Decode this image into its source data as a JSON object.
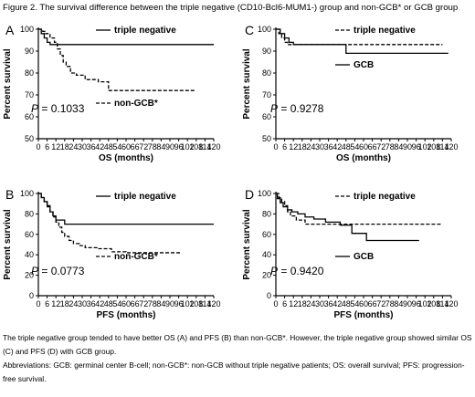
{
  "figure": {
    "title": "Figure 2. The survival difference between the triple negative (CD10-Bcl6-MUM1-) group and non-GCB* or GCB group",
    "caption": "The triple negative group tended to have better OS (A) and PFS (B) than non-GCB*. However, the triple negative group showed similar OS (C) and PFS (D) with GCB group.",
    "abbreviations": "Abbreviations: GCB: germinal center B-cell; non-GCB*: non-GCB without triple negative patients; OS: overall survival; PFS: progression-free survival."
  },
  "colors": {
    "line": "#000000",
    "background": "#ffffff"
  },
  "chart_data": [
    {
      "panel": "A",
      "type": "line",
      "ylabel": "Percent survival",
      "xlabel": "OS (months)",
      "xlim": [
        0,
        120
      ],
      "ylim": [
        50,
        100
      ],
      "x_ticks": [
        "0",
        "6",
        "12",
        "18",
        "24",
        "30",
        "36",
        "42",
        "48",
        "54",
        "60",
        "66",
        "72",
        "78",
        "84",
        "90",
        "96",
        "102",
        "108",
        "114",
        "120"
      ],
      "y_ticks": [
        "50",
        "60",
        "70",
        "80",
        "90",
        "100"
      ],
      "p_value": "0.1033",
      "legend_position": "top-right",
      "series": [
        {
          "name": "triple negative",
          "style": "solid",
          "points": [
            [
              0,
              100
            ],
            [
              2,
              100
            ],
            [
              2,
              98
            ],
            [
              4,
              98
            ],
            [
              4,
              96
            ],
            [
              6,
              96
            ],
            [
              6,
              94
            ],
            [
              8,
              94
            ],
            [
              8,
              93
            ],
            [
              120,
              93
            ]
          ]
        },
        {
          "name": "non-GCB*",
          "style": "dashed",
          "points": [
            [
              0,
              100
            ],
            [
              3,
              100
            ],
            [
              3,
              99
            ],
            [
              5,
              99
            ],
            [
              5,
              98
            ],
            [
              8,
              98
            ],
            [
              8,
              96
            ],
            [
              11,
              96
            ],
            [
              11,
              94
            ],
            [
              13,
              94
            ],
            [
              13,
              91
            ],
            [
              15,
              91
            ],
            [
              15,
              88
            ],
            [
              17,
              88
            ],
            [
              17,
              85
            ],
            [
              19,
              85
            ],
            [
              19,
              83
            ],
            [
              22,
              83
            ],
            [
              22,
              80
            ],
            [
              26,
              80
            ],
            [
              26,
              79
            ],
            [
              32,
              79
            ],
            [
              32,
              77
            ],
            [
              41,
              77
            ],
            [
              41,
              76
            ],
            [
              48,
              76
            ],
            [
              48,
              72
            ],
            [
              108,
              72
            ]
          ]
        }
      ]
    },
    {
      "panel": "C",
      "type": "line",
      "ylabel": "Percent survival",
      "xlabel": "OS (months)",
      "xlim": [
        0,
        120
      ],
      "ylim": [
        50,
        100
      ],
      "x_ticks": [
        "0",
        "6",
        "12",
        "18",
        "24",
        "30",
        "36",
        "42",
        "48",
        "54",
        "60",
        "66",
        "72",
        "78",
        "84",
        "90",
        "96",
        "102",
        "108",
        "114",
        "120"
      ],
      "y_ticks": [
        "50",
        "60",
        "70",
        "80",
        "90",
        "100"
      ],
      "p_value": "0.9278",
      "legend_position": "top-right",
      "series": [
        {
          "name": "triple negative",
          "style": "dashed",
          "points": [
            [
              0,
              100
            ],
            [
              2,
              100
            ],
            [
              2,
              98
            ],
            [
              4,
              98
            ],
            [
              4,
              96
            ],
            [
              6,
              96
            ],
            [
              6,
              94
            ],
            [
              8,
              94
            ],
            [
              8,
              93
            ],
            [
              114,
              93
            ]
          ]
        },
        {
          "name": "GCB",
          "style": "solid",
          "points": [
            [
              0,
              100
            ],
            [
              3,
              100
            ],
            [
              3,
              98
            ],
            [
              6,
              98
            ],
            [
              6,
              96
            ],
            [
              9,
              96
            ],
            [
              9,
              94
            ],
            [
              12,
              94
            ],
            [
              12,
              93
            ],
            [
              48,
              93
            ],
            [
              48,
              89
            ],
            [
              118,
              89
            ]
          ]
        }
      ]
    },
    {
      "panel": "B",
      "type": "line",
      "ylabel": "Percent survival",
      "xlabel": "PFS (months)",
      "xlim": [
        0,
        120
      ],
      "ylim": [
        0,
        100
      ],
      "x_ticks": [
        "0",
        "6",
        "12",
        "18",
        "24",
        "30",
        "36",
        "42",
        "48",
        "54",
        "60",
        "66",
        "72",
        "78",
        "84",
        "90",
        "96",
        "102",
        "108",
        "114",
        "120"
      ],
      "y_ticks": [
        "0",
        "20",
        "40",
        "60",
        "80",
        "100"
      ],
      "p_value": "0.0773",
      "legend_position": "top-right",
      "series": [
        {
          "name": "triple negative",
          "style": "solid",
          "points": [
            [
              0,
              100
            ],
            [
              2,
              100
            ],
            [
              2,
              96
            ],
            [
              4,
              96
            ],
            [
              4,
              92
            ],
            [
              6,
              92
            ],
            [
              6,
              88
            ],
            [
              8,
              88
            ],
            [
              8,
              82
            ],
            [
              10,
              82
            ],
            [
              10,
              78
            ],
            [
              12,
              78
            ],
            [
              12,
              74
            ],
            [
              18,
              74
            ],
            [
              18,
              70
            ],
            [
              120,
              70
            ]
          ]
        },
        {
          "name": "non-GCB*",
          "style": "dashed",
          "points": [
            [
              0,
              100
            ],
            [
              2,
              100
            ],
            [
              2,
              96
            ],
            [
              4,
              96
            ],
            [
              4,
              92
            ],
            [
              6,
              92
            ],
            [
              6,
              87
            ],
            [
              8,
              87
            ],
            [
              8,
              82
            ],
            [
              10,
              82
            ],
            [
              10,
              77
            ],
            [
              12,
              77
            ],
            [
              12,
              72
            ],
            [
              14,
              72
            ],
            [
              14,
              67
            ],
            [
              16,
              67
            ],
            [
              16,
              62
            ],
            [
              18,
              62
            ],
            [
              18,
              58
            ],
            [
              21,
              58
            ],
            [
              21,
              54
            ],
            [
              24,
              54
            ],
            [
              24,
              51
            ],
            [
              28,
              51
            ],
            [
              28,
              49
            ],
            [
              32,
              49
            ],
            [
              32,
              47
            ],
            [
              40,
              47
            ],
            [
              40,
              46
            ],
            [
              50,
              46
            ],
            [
              50,
              43
            ],
            [
              60,
              43
            ],
            [
              60,
              42
            ],
            [
              98,
              42
            ]
          ]
        }
      ]
    },
    {
      "panel": "D",
      "type": "line",
      "ylabel": "Percent survival",
      "xlabel": "PFS (months)",
      "xlim": [
        0,
        120
      ],
      "ylim": [
        0,
        100
      ],
      "x_ticks": [
        "0",
        "6",
        "12",
        "18",
        "24",
        "30",
        "36",
        "42",
        "48",
        "54",
        "60",
        "66",
        "72",
        "78",
        "84",
        "90",
        "96",
        "102",
        "108",
        "114",
        "120"
      ],
      "y_ticks": [
        "0",
        "20",
        "40",
        "60",
        "80",
        "100"
      ],
      "p_value": "0.9420",
      "legend_position": "top-right",
      "series": [
        {
          "name": "triple negative",
          "style": "dashed",
          "points": [
            [
              0,
              100
            ],
            [
              2,
              100
            ],
            [
              2,
              96
            ],
            [
              4,
              96
            ],
            [
              4,
              92
            ],
            [
              6,
              92
            ],
            [
              6,
              88
            ],
            [
              8,
              88
            ],
            [
              8,
              82
            ],
            [
              10,
              82
            ],
            [
              10,
              78
            ],
            [
              14,
              78
            ],
            [
              14,
              74
            ],
            [
              20,
              74
            ],
            [
              20,
              70
            ],
            [
              114,
              70
            ]
          ]
        },
        {
          "name": "GCB",
          "style": "solid",
          "points": [
            [
              0,
              100
            ],
            [
              1,
              100
            ],
            [
              1,
              95
            ],
            [
              3,
              95
            ],
            [
              3,
              91
            ],
            [
              5,
              91
            ],
            [
              5,
              87
            ],
            [
              8,
              87
            ],
            [
              8,
              84
            ],
            [
              11,
              84
            ],
            [
              11,
              82
            ],
            [
              15,
              82
            ],
            [
              15,
              80
            ],
            [
              20,
              80
            ],
            [
              20,
              77
            ],
            [
              26,
              77
            ],
            [
              26,
              75
            ],
            [
              34,
              75
            ],
            [
              34,
              72
            ],
            [
              44,
              72
            ],
            [
              44,
              69
            ],
            [
              52,
              69
            ],
            [
              52,
              61
            ],
            [
              62,
              61
            ],
            [
              62,
              54
            ],
            [
              98,
              54
            ]
          ]
        }
      ]
    }
  ]
}
